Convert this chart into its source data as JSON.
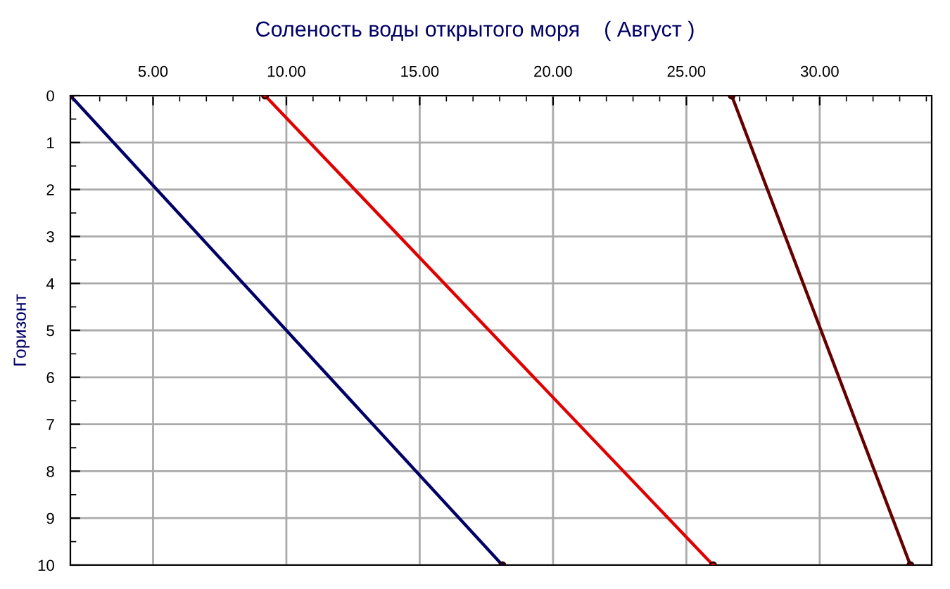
{
  "chart_data": {
    "type": "line",
    "title": "Соленость воды открытого моря    ( Август )",
    "ylabel": "Горизонт",
    "xlim": [
      1.9,
      34.2
    ],
    "xticks": [
      {
        "value": 5,
        "label": "5.00"
      },
      {
        "value": 10,
        "label": "10.00"
      },
      {
        "value": 15,
        "label": "15.00"
      },
      {
        "value": 20,
        "label": "20.00"
      },
      {
        "value": 25,
        "label": "25.00"
      },
      {
        "value": 30,
        "label": "30.00"
      }
    ],
    "ylim": [
      10,
      0
    ],
    "yticks": [
      0,
      1,
      2,
      3,
      4,
      5,
      6,
      7,
      8,
      9,
      10
    ],
    "grid": true,
    "marker": "circle",
    "line_style": "solid",
    "series": [
      {
        "color": "#000066",
        "x": [
          1.9,
          18.1
        ],
        "values": [
          0,
          10
        ]
      },
      {
        "color": "#e00000",
        "x": [
          9.2,
          26.0
        ],
        "values": [
          0,
          10
        ]
      },
      {
        "color": "#660000",
        "x": [
          26.7,
          33.4
        ],
        "values": [
          0,
          10
        ]
      }
    ]
  }
}
